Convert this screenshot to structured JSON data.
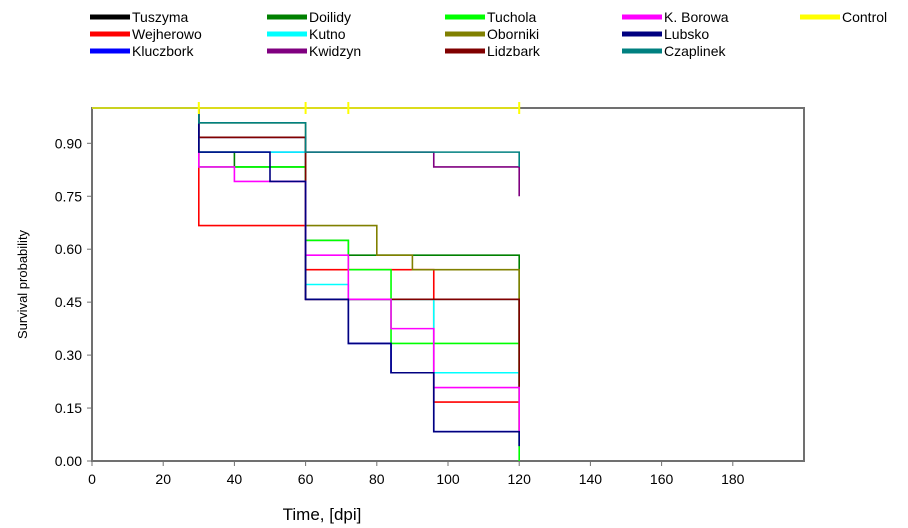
{
  "chart_data": {
    "type": "line",
    "step": true,
    "title": "",
    "xlabel": "Time, [dpi]",
    "ylabel": "Survival probability",
    "xlim": [
      0,
      200
    ],
    "ylim": [
      0,
      1.0
    ],
    "xticks": [
      0,
      20,
      40,
      60,
      80,
      100,
      120,
      140,
      160,
      180
    ],
    "yticks": [
      0.0,
      0.15,
      0.3,
      0.45,
      0.6,
      0.75,
      0.9
    ],
    "x_tick_labels": [
      "0",
      "20",
      "40",
      "60",
      "80",
      "100",
      "120",
      "140",
      "160",
      "180"
    ],
    "y_tick_labels": [
      "0.00",
      "0.15",
      "0.30",
      "0.45",
      "0.60",
      "0.75",
      "0.90"
    ],
    "grid": false,
    "legend_position": "top",
    "series": [
      {
        "name": "Tuszyma",
        "color": "#000000",
        "x": [
          0,
          30,
          60,
          120
        ],
        "y": [
          1.0,
          0.917,
          0.458,
          0.208
        ]
      },
      {
        "name": "Wejherowo",
        "color": "#ff0000",
        "x": [
          0,
          30,
          60,
          96,
          120
        ],
        "y": [
          1.0,
          0.667,
          0.542,
          0.167,
          0.083
        ]
      },
      {
        "name": "Kluczbork",
        "color": "#0000ff",
        "x": [
          0,
          30,
          60,
          72,
          84,
          96,
          120
        ],
        "y": [
          1.0,
          0.875,
          0.458,
          0.333,
          0.25,
          0.083,
          0.042
        ]
      },
      {
        "name": "Doilidy",
        "color": "#008000",
        "x": [
          0,
          30,
          40,
          60,
          72,
          120
        ],
        "y": [
          1.0,
          0.875,
          0.833,
          0.625,
          0.583,
          0.333
        ]
      },
      {
        "name": "Kutno",
        "color": "#00ffff",
        "x": [
          0,
          30,
          60,
          72,
          96,
          120
        ],
        "y": [
          1.0,
          0.875,
          0.5,
          0.458,
          0.25,
          0.208
        ]
      },
      {
        "name": "Kwidzyn",
        "color": "#800080",
        "x": [
          0,
          30,
          60,
          96,
          120
        ],
        "y": [
          1.0,
          0.917,
          0.875,
          0.833,
          0.75
        ]
      },
      {
        "name": "Tuchola",
        "color": "#00ff00",
        "x": [
          0,
          30,
          60,
          72,
          84,
          120
        ],
        "y": [
          1.0,
          0.833,
          0.625,
          0.542,
          0.333,
          0.0
        ]
      },
      {
        "name": "Oborniki",
        "color": "#808000",
        "x": [
          0,
          30,
          60,
          80,
          90,
          120
        ],
        "y": [
          1.0,
          0.958,
          0.667,
          0.583,
          0.542,
          0.167
        ]
      },
      {
        "name": "Lidzbark",
        "color": "#800000",
        "x": [
          0,
          30,
          60,
          120
        ],
        "y": [
          1.0,
          0.917,
          0.458,
          0.208
        ]
      },
      {
        "name": "K. Borowa",
        "color": "#ff00ff",
        "x": [
          0,
          30,
          40,
          60,
          72,
          84,
          96,
          120
        ],
        "y": [
          1.0,
          0.833,
          0.792,
          0.583,
          0.458,
          0.375,
          0.208,
          0.083
        ]
      },
      {
        "name": "Lubsko",
        "color": "#000080",
        "x": [
          0,
          30,
          50,
          60,
          72,
          84,
          96,
          120
        ],
        "y": [
          1.0,
          0.875,
          0.792,
          0.458,
          0.333,
          0.25,
          0.083,
          0.042
        ]
      },
      {
        "name": "Czaplinek",
        "color": "#008080",
        "x": [
          0,
          30,
          60,
          120
        ],
        "y": [
          1.0,
          0.958,
          0.875,
          0.833
        ]
      },
      {
        "name": "Control",
        "color": "#ffff00",
        "x": [
          0,
          120
        ],
        "y": [
          1.0,
          1.0
        ]
      }
    ]
  }
}
